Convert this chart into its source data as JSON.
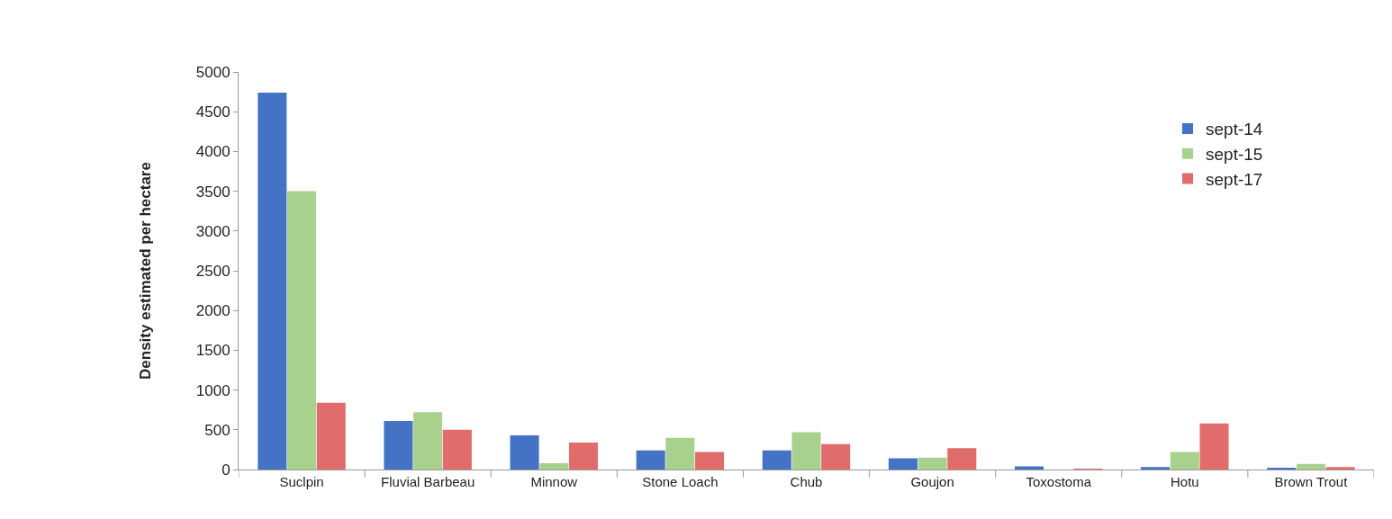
{
  "chart_data": {
    "type": "bar",
    "ylabel": "Density estimated per hectare",
    "categories": [
      "Suclpin",
      "Fluvial Barbeau",
      "Minnow",
      "Stone Loach",
      "Chub",
      "Goujon",
      "Toxostoma",
      "Hotu",
      "Brown Trout"
    ],
    "series": [
      {
        "name": "sept-14",
        "color": "#4472c4",
        "values": [
          4740,
          610,
          430,
          240,
          240,
          140,
          40,
          30,
          20
        ]
      },
      {
        "name": "sept-15",
        "color": "#a9d18e",
        "values": [
          3500,
          720,
          80,
          400,
          470,
          150,
          0,
          220,
          70
        ]
      },
      {
        "name": "sept-17",
        "color": "#e06c6c",
        "values": [
          840,
          500,
          340,
          220,
          320,
          270,
          10,
          580,
          30
        ]
      }
    ],
    "ylim": [
      0,
      5000
    ],
    "yticks": [
      0,
      500,
      1000,
      1500,
      2000,
      2500,
      3000,
      3500,
      4000,
      4500,
      5000
    ],
    "legend": "top right"
  }
}
